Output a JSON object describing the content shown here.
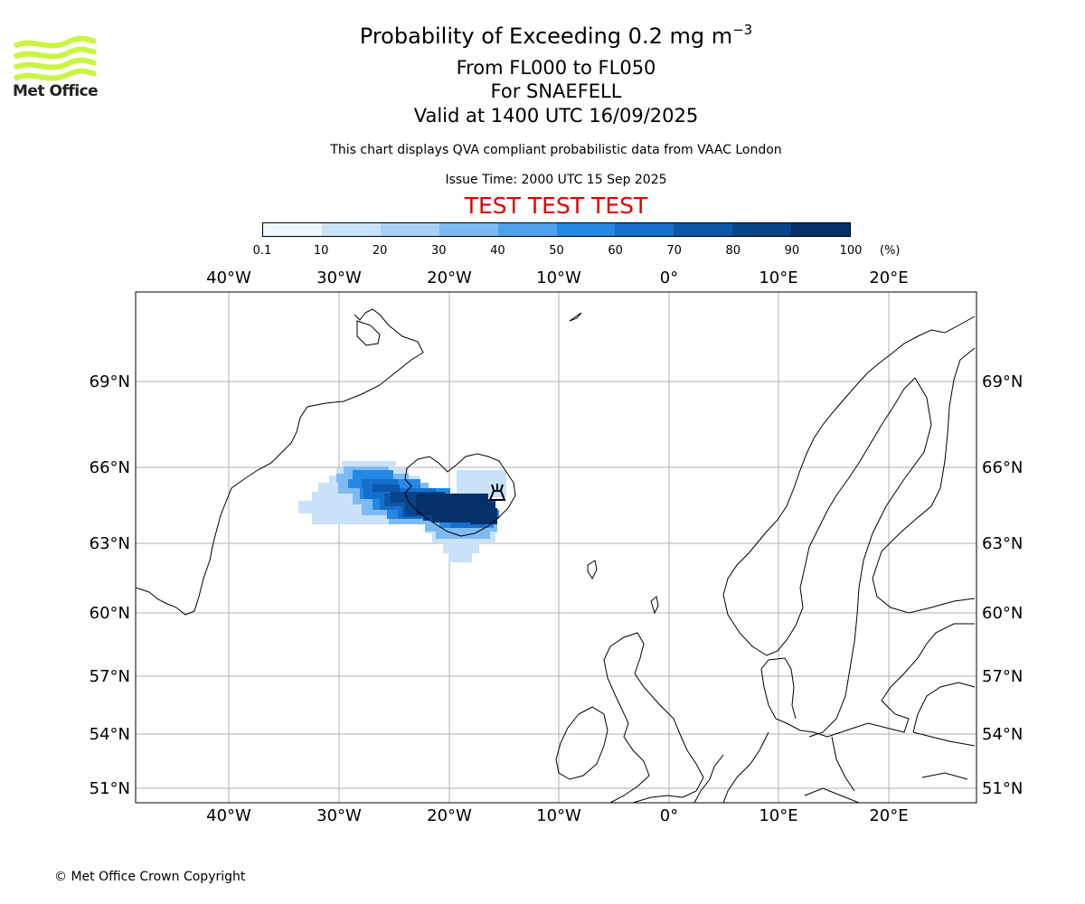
{
  "header": {
    "title_main": "Probability of Exceeding 0.2 mg m",
    "title_sup": "−3",
    "line1": "From FL000 to FL050",
    "line2": "For SNAEFELL",
    "line3": "Valid at 1400 UTC 16/09/2025",
    "note1": "This chart displays QVA compliant probabilistic data from VAAC London",
    "note2": "Issue Time: 2000 UTC 15 Sep 2025",
    "test_banner": "TEST TEST TEST"
  },
  "logo": {
    "text": "Met Office",
    "color": "#c8f542"
  },
  "colorbar": {
    "ticks": [
      "0.1",
      "10",
      "20",
      "30",
      "40",
      "50",
      "60",
      "70",
      "80",
      "90",
      "100"
    ],
    "unit": "(%)",
    "colors": [
      "#eef6fe",
      "#c9e2fa",
      "#a8d1f7",
      "#7dbaf2",
      "#4fa1ec",
      "#2488e4",
      "#1570cc",
      "#0c58a8",
      "#08448a",
      "#05306a"
    ]
  },
  "map": {
    "lon_labels": [
      "40°W",
      "30°W",
      "20°W",
      "10°W",
      "0°",
      "10°E",
      "20°E"
    ],
    "lat_labels": [
      "69°N",
      "66°N",
      "63°N",
      "60°N",
      "57°N",
      "54°N",
      "51°N"
    ],
    "volcano": "SNAEFELL"
  },
  "footer": {
    "copyright": "© Met Office Crown Copyright"
  }
}
